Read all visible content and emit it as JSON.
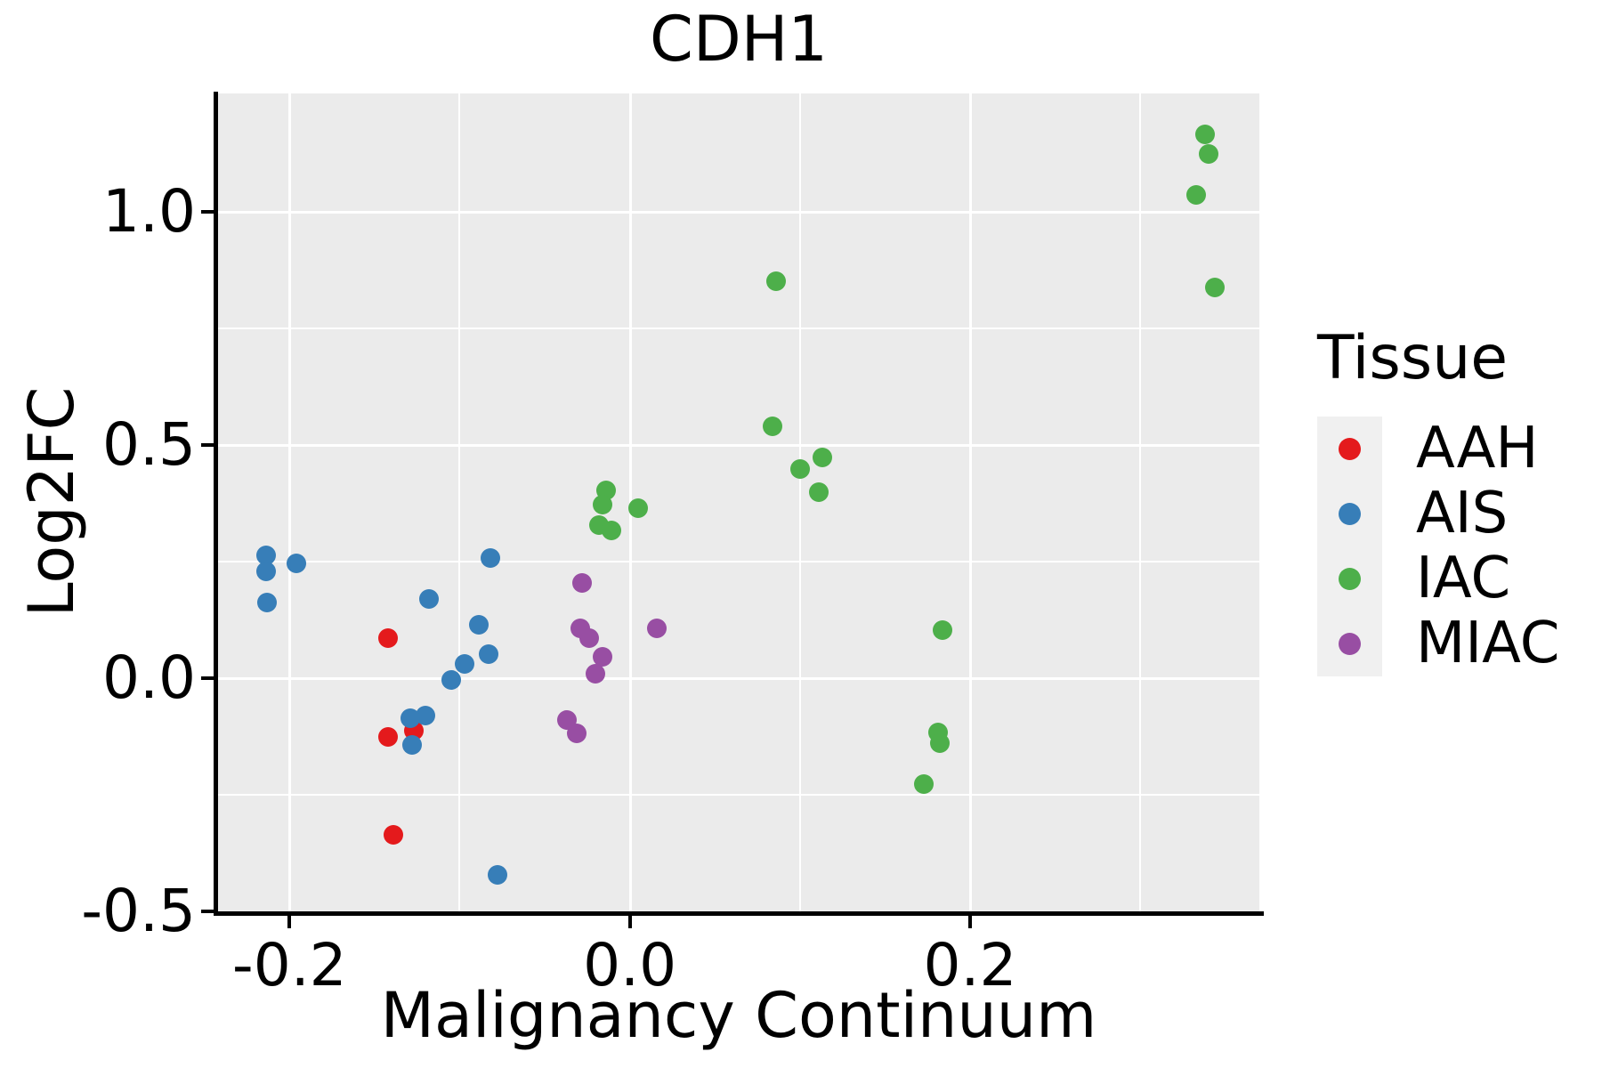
{
  "chart_data": {
    "type": "scatter",
    "title": "CDH1",
    "xlabel": "Malignancy Continuum",
    "ylabel": "Log2FC",
    "xlim": [
      -0.242,
      0.37
    ],
    "ylim": [
      -0.5,
      1.254
    ],
    "grid_on": true,
    "panel_bg": "#ebebeb",
    "gridline_color": "#ffffff",
    "spine_color": "#000000",
    "x_ticks": [
      {
        "value": -0.2,
        "label": "-0.2"
      },
      {
        "value": 0.0,
        "label": "0.0"
      },
      {
        "value": 0.2,
        "label": "0.2"
      }
    ],
    "y_ticks": [
      {
        "value": 1.0,
        "label": "1.0"
      },
      {
        "value": 0.5,
        "label": "0.5"
      },
      {
        "value": 0.0,
        "label": "0.0"
      },
      {
        "value": -0.5,
        "label": "-0.5"
      }
    ],
    "x_minor_gridlines": [
      -0.1,
      0.1,
      0.3
    ],
    "x_major_gridlines": [
      -0.2,
      0.0,
      0.2
    ],
    "y_minor_gridlines": [
      0.75,
      0.25,
      -0.25
    ],
    "y_major_gridlines": [
      1.0,
      0.5,
      0.0
    ],
    "legend": {
      "title": "Tissue",
      "position": "right",
      "items": [
        {
          "label": "AAH",
          "color": "#e41a1c"
        },
        {
          "label": "AIS",
          "color": "#377eb8"
        },
        {
          "label": "IAC",
          "color": "#4daf4a"
        },
        {
          "label": "MIAC",
          "color": "#984ea3"
        }
      ]
    },
    "series": [
      {
        "name": "AAH",
        "color": "#e41a1c",
        "points": [
          [
            -0.142,
            0.085
          ],
          [
            -0.142,
            -0.125
          ],
          [
            -0.127,
            -0.113
          ],
          [
            -0.139,
            -0.336
          ]
        ]
      },
      {
        "name": "AIS",
        "color": "#377eb8",
        "points": [
          [
            -0.214,
            0.263
          ],
          [
            -0.214,
            0.229
          ],
          [
            -0.196,
            0.246
          ],
          [
            -0.213,
            0.162
          ],
          [
            -0.082,
            0.258
          ],
          [
            -0.118,
            0.17
          ],
          [
            -0.089,
            0.114
          ],
          [
            -0.083,
            0.051
          ],
          [
            -0.097,
            0.03
          ],
          [
            -0.105,
            -0.004
          ],
          [
            -0.12,
            -0.08
          ],
          [
            -0.129,
            -0.086
          ],
          [
            -0.128,
            -0.143
          ],
          [
            -0.078,
            -0.422
          ]
        ]
      },
      {
        "name": "IAC",
        "color": "#4daf4a",
        "points": [
          [
            0.086,
            0.851
          ],
          [
            0.084,
            0.54
          ],
          [
            0.113,
            0.474
          ],
          [
            0.1,
            0.449
          ],
          [
            0.111,
            0.398
          ],
          [
            -0.014,
            0.403
          ],
          [
            -0.016,
            0.373
          ],
          [
            -0.018,
            0.328
          ],
          [
            -0.011,
            0.316
          ],
          [
            0.005,
            0.365
          ],
          [
            0.184,
            0.103
          ],
          [
            0.181,
            -0.116
          ],
          [
            0.182,
            -0.139
          ],
          [
            0.173,
            -0.227
          ],
          [
            0.338,
            1.167
          ],
          [
            0.34,
            1.125
          ],
          [
            0.333,
            1.036
          ],
          [
            0.344,
            0.837
          ]
        ]
      },
      {
        "name": "MIAC",
        "color": "#984ea3",
        "points": [
          [
            -0.028,
            0.205
          ],
          [
            -0.029,
            0.106
          ],
          [
            -0.024,
            0.085
          ],
          [
            -0.016,
            0.046
          ],
          [
            -0.02,
            0.009
          ],
          [
            -0.037,
            -0.089
          ],
          [
            -0.031,
            -0.119
          ],
          [
            0.016,
            0.107
          ]
        ]
      }
    ]
  }
}
